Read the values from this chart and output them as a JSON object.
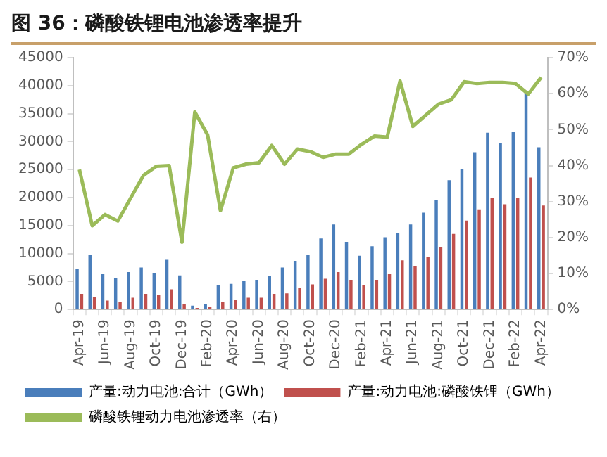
{
  "chart_data": {
    "type": "bar",
    "title": "图 36：磷酸铁锂电池渗透率提升",
    "categories": [
      "Apr-19",
      null,
      "Jun-19",
      null,
      "Aug-19",
      null,
      "Oct-19",
      null,
      "Dec-19",
      null,
      "Feb-20",
      null,
      "Apr-20",
      null,
      "Jun-20",
      null,
      "Aug-20",
      null,
      "Oct-20",
      null,
      "Dec-20",
      null,
      "Feb-21",
      null,
      "Apr-21",
      null,
      "Jun-21",
      null,
      "Aug-21",
      null,
      "Oct-21",
      null,
      "Dec-21",
      null,
      "Feb-22",
      null,
      "Apr-22"
    ],
    "series": [
      {
        "name": "产量:动力电池:合计（GWh）",
        "color": "#4a7ebb",
        "values": [
          7200,
          9800,
          6300,
          5700,
          6700,
          7500,
          6500,
          8900,
          6100,
          700,
          900,
          4400,
          4600,
          5200,
          5300,
          6000,
          7500,
          8700,
          9800,
          12700,
          15200,
          12100,
          9600,
          11300,
          12900,
          13700,
          15200,
          17300,
          19500,
          23100,
          25100,
          28100,
          31600,
          29700,
          31700,
          39000,
          29000
        ]
      },
      {
        "name": "产量:动力电池:磷酸铁锂（GWh）",
        "color": "#c0504d",
        "values": [
          2800,
          2300,
          1600,
          1400,
          2100,
          2800,
          2600,
          3600,
          1000,
          300,
          400,
          1300,
          1700,
          2100,
          2100,
          2800,
          2900,
          3800,
          4500,
          5500,
          6700,
          5300,
          4400,
          5300,
          6300,
          8800,
          7800,
          9400,
          11100,
          13500,
          15900,
          17900,
          20000,
          18800,
          20000,
          23600,
          18600
        ]
      },
      {
        "name": "磷酸铁锂动力电池渗透率（右）",
        "type": "line",
        "axis": "y2",
        "color": "#9bbb59",
        "values": [
          38.9,
          23.3,
          26.4,
          24.6,
          31,
          37.3,
          39.8,
          40,
          18.7,
          54.9,
          48.5,
          27.5,
          39.4,
          40.4,
          40.8,
          45.6,
          40.4,
          44.6,
          43.9,
          42.3,
          43.2,
          43.2,
          45.9,
          48.2,
          47.9,
          63.5,
          50.9,
          54,
          57.1,
          58.3,
          63.3,
          62.8,
          63.1,
          63.1,
          62.8,
          59.9,
          64.5
        ]
      }
    ],
    "ylim": [
      0,
      45000
    ],
    "yticks": [
      0,
      5000,
      10000,
      15000,
      20000,
      25000,
      30000,
      35000,
      40000,
      45000
    ],
    "y2lim": [
      0,
      70
    ],
    "y2ticks": [
      {
        "value": 0,
        "label": "0%"
      },
      {
        "value": 10,
        "label": "10%"
      },
      {
        "value": 20,
        "label": "20%"
      },
      {
        "value": 30,
        "label": "30%"
      },
      {
        "value": 40,
        "label": "40%"
      },
      {
        "value": 50,
        "label": "50%"
      },
      {
        "value": 60,
        "label": "60%"
      },
      {
        "value": 70,
        "label": "70%"
      }
    ],
    "grid": false,
    "legend": "bottom",
    "marker": "none"
  }
}
